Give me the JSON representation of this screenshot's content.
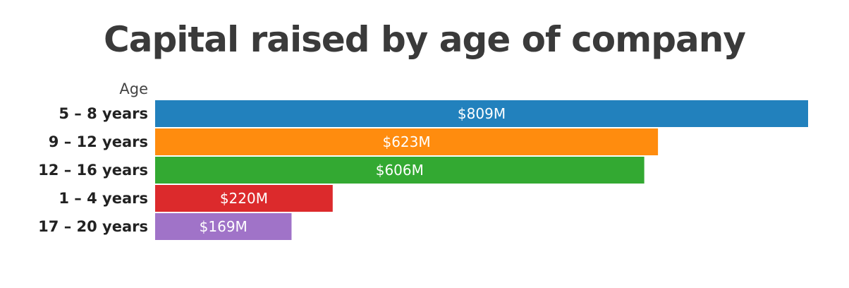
{
  "chart_data": {
    "type": "bar",
    "orientation": "horizontal",
    "title": "Capital raised by age of company",
    "ylabel": "Age",
    "xlabel": "",
    "categories": [
      "5 – 8 years",
      "9 – 12 years",
      "12 – 16 years",
      "1 – 4 years",
      "17 – 20 years"
    ],
    "values": [
      809,
      623,
      606,
      220,
      169
    ],
    "data_labels": [
      "$809M",
      "$623M",
      "$606M",
      "$220M",
      "$169M"
    ],
    "unit": "M",
    "xlim": [
      0,
      809
    ],
    "colors": [
      "#2281bd",
      "#ff8c0e",
      "#33a932",
      "#dc2a2c",
      "#a073c8"
    ],
    "grid": false,
    "legend": "none"
  }
}
